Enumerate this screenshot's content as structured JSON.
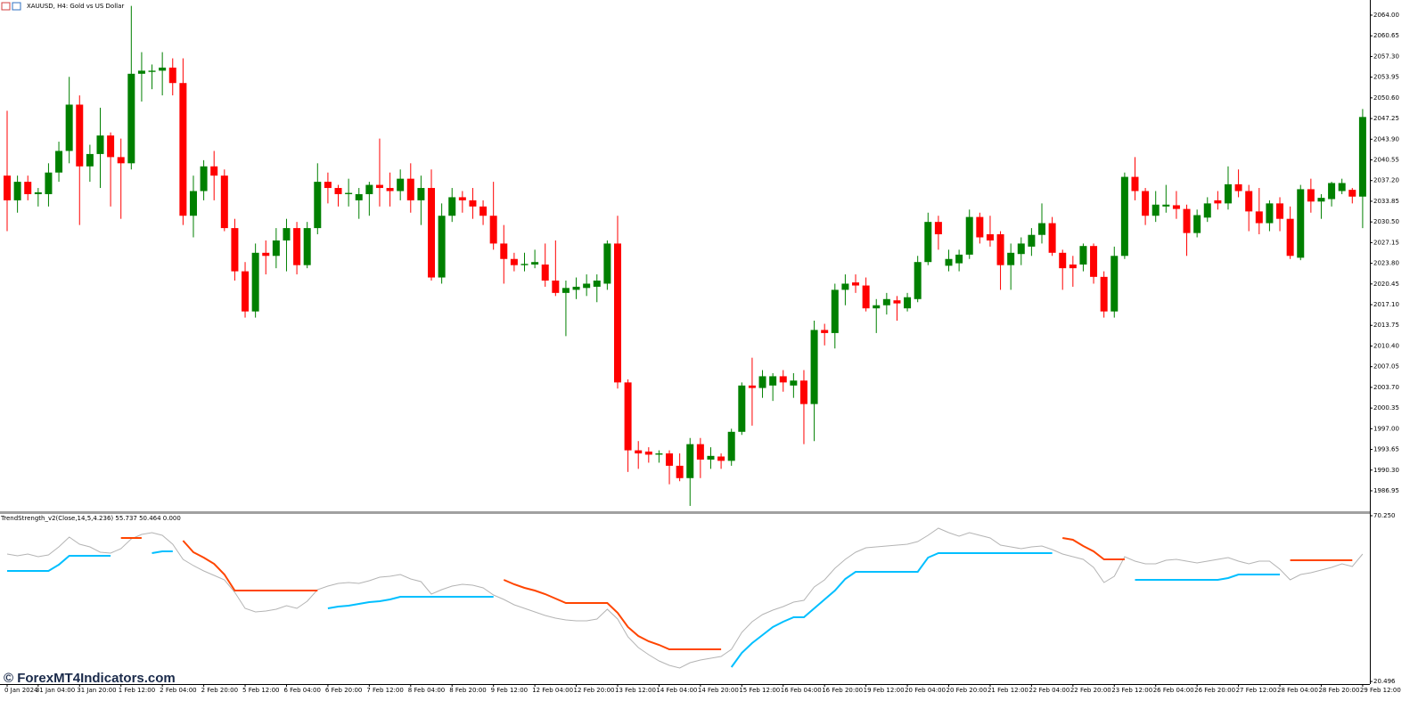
{
  "chart_data": [
    {
      "type": "candlestick",
      "title": "XAUUSD, H4:  Gold vs US Dollar",
      "categories": [
        "0 Jan 2024",
        null,
        null,
        "31 Jan 04:00",
        null,
        null,
        null,
        "31 Jan 20:00",
        null,
        null,
        null,
        "1 Feb 12:00",
        null,
        null,
        null,
        "2 Feb 04:00",
        null,
        null,
        null,
        "2 Feb 20:00",
        null,
        null,
        null,
        "5 Feb 12:00",
        null,
        null,
        null,
        "6 Feb 04:00",
        null,
        null,
        null,
        "6 Feb 20:00",
        null,
        null,
        null,
        "7 Feb 12:00",
        null,
        null,
        null,
        "8 Feb 04:00",
        null,
        null,
        null,
        "8 Feb 20:00",
        null,
        null,
        null,
        "9 Feb 12:00",
        null,
        null,
        null,
        "12 Feb 04:00",
        null,
        null,
        null,
        "12 Feb 20:00",
        null,
        null,
        null,
        "13 Feb 12:00",
        null,
        null,
        null,
        "14 Feb 04:00",
        null,
        null,
        null,
        "14 Feb 20:00",
        null,
        null,
        null,
        "15 Feb 12:00",
        null,
        null,
        null,
        "16 Feb 04:00",
        null,
        null,
        null,
        "16 Feb 20:00",
        null,
        null,
        null,
        "19 Feb 12:00",
        null,
        null,
        null,
        "20 Feb 04:00",
        null,
        null,
        null,
        "20 Feb 20:00",
        null,
        null,
        null,
        "21 Feb 12:00",
        null,
        null,
        null,
        "22 Feb 04:00",
        null,
        null,
        null,
        "22 Feb 20:00",
        null,
        null,
        null,
        "23 Feb 12:00",
        null,
        null,
        null,
        "26 Feb 04:00",
        null,
        null,
        null,
        "26 Feb 20:00",
        null,
        null,
        null,
        "27 Feb 12:00",
        null,
        null,
        null,
        "28 Feb 04:00",
        null,
        null,
        null,
        "28 Feb 20:00",
        null,
        null,
        null,
        "29 Feb 12:00"
      ],
      "open": [
        2038,
        2034,
        2037,
        2035,
        2035,
        2038.5,
        2042,
        2049.5,
        2039.5,
        2041.5,
        2044.5,
        2041,
        2040,
        2054.5,
        2054.8,
        2055,
        2055.5,
        2053,
        2031.5,
        2035.5,
        2039.5,
        2038,
        2029.5,
        2022.5,
        2016,
        2025.5,
        2025,
        2027.5,
        2029.5,
        2023.5,
        2029.5,
        2037,
        2036,
        2035,
        2034,
        2035,
        2036.5,
        2036,
        2035.5,
        2037.5,
        2034,
        2036,
        2021.5,
        2031.5,
        2034.5,
        2034,
        2033,
        2031.5,
        2027,
        2024.5,
        2023.5,
        2023.6,
        2023.6,
        2021,
        2019,
        2019.5,
        2019.8,
        2020,
        2020.5,
        2027,
        2004.5,
        1993.5,
        1993.3,
        1992.8,
        1993,
        1991,
        1989,
        1994.5,
        1992,
        1992.5,
        1991.8,
        1996.5,
        2004,
        2003.6,
        2004,
        2005.5,
        2004,
        2004.8,
        2001,
        2013,
        2012.5,
        2019.5,
        2020.7,
        2020.2,
        2016.5,
        2017,
        2017.8,
        2016.5,
        2018,
        2024,
        2030.5,
        2023.4,
        2023.8,
        2025.2,
        2031.3,
        2028.5,
        2028.5,
        2023.5,
        2025.3,
        2026.5,
        2028.4,
        2030.3,
        2025.5,
        2023.6,
        2023.6,
        2026.6,
        2021.6,
        2016,
        2025,
        2037.8,
        2035.5,
        2031.5,
        2033,
        2033.2,
        2032.6,
        2028.7,
        2031.2,
        2034,
        2033.5,
        2036.6,
        2035.5,
        2032.2,
        2030.3,
        2033.5,
        2031,
        2024.7,
        2035.8,
        2033.8,
        2034.2,
        2035.5,
        2035.7,
        2034.6
      ],
      "high": [
        2048.5,
        2038,
        2038,
        2036,
        2040,
        2043.5,
        2054,
        2051,
        2043,
        2049,
        2045,
        2044,
        2065.5,
        2058,
        2056,
        2058,
        2057,
        2057,
        2038,
        2040.5,
        2042,
        2039,
        2031,
        2024,
        2027,
        2027.5,
        2029.5,
        2031,
        2030.5,
        2030.5,
        2040,
        2038.5,
        2036.5,
        2037.5,
        2036,
        2037,
        2044,
        2038.5,
        2039,
        2040,
        2038,
        2039,
        2033.5,
        2036,
        2035.5,
        2036,
        2034,
        2037,
        2030,
        2025.5,
        2025.5,
        2026,
        2027,
        2027.5,
        2021,
        2021.5,
        2022,
        2022,
        2027.5,
        2031.5,
        2005,
        1995,
        1994,
        1993.5,
        1993.5,
        1993,
        1995.5,
        1995.5,
        1994,
        1993,
        1997,
        2004.5,
        2008.5,
        2006.5,
        2006,
        2006.5,
        2006,
        2006.5,
        2014.5,
        2014,
        2020.5,
        2022,
        2022,
        2021.5,
        2018,
        2019,
        2018.5,
        2019,
        2025,
        2032,
        2031.5,
        2026,
        2026,
        2032.5,
        2032,
        2031.5,
        2029,
        2027,
        2028,
        2029.5,
        2033.5,
        2031.3,
        2026,
        2025,
        2027,
        2027,
        2022.5,
        2026.5,
        2038.5,
        2041,
        2036,
        2035.5,
        2036.5,
        2035.5,
        2033.3,
        2032.5,
        2034.5,
        2035.5,
        2039.5,
        2039,
        2036.5,
        2036,
        2034,
        2034.5,
        2033,
        2036.5,
        2037.5,
        2035,
        2037,
        2037.5,
        2036,
        2048.8
      ],
      "low": [
        2029,
        2032,
        2034,
        2033,
        2033,
        2037,
        2040,
        2030,
        2037,
        2036,
        2033,
        2031,
        2039,
        2050,
        2052,
        2051,
        2051,
        2030,
        2028,
        2034,
        2034,
        2029,
        2021,
        2015,
        2015,
        2022,
        2023,
        2022.5,
        2022,
        2023,
        2028.5,
        2033.5,
        2033,
        2033,
        2031,
        2031.5,
        2033,
        2033,
        2034,
        2032,
        2030,
        2021,
        2020.5,
        2030.5,
        2032,
        2031,
        2030,
        2026,
        2020.5,
        2022.5,
        2022.5,
        2023,
        2020,
        2018.5,
        2012,
        2018,
        2018.5,
        2017.5,
        2019.5,
        2003.5,
        1990,
        1990.5,
        1991.5,
        1991.5,
        1988,
        1988.5,
        1984.5,
        1989,
        1990.5,
        1990.5,
        1991,
        1996,
        1997.5,
        2002,
        2001.5,
        2003,
        2002,
        1994.5,
        1995,
        2010.5,
        2010,
        2017,
        2019,
        2016,
        2012.5,
        2015.5,
        2014.5,
        2016,
        2017.5,
        2023.5,
        2026,
        2022.5,
        2022.5,
        2024.5,
        2027,
        2026.5,
        2019.5,
        2019.5,
        2023.5,
        2025,
        2027,
        2025,
        2019.5,
        2020,
        2022.5,
        2020.5,
        2015,
        2015,
        2024.5,
        2034,
        2030,
        2030.5,
        2032,
        2031,
        2025,
        2028,
        2030.5,
        2032.5,
        2032.5,
        2034.5,
        2029,
        2028.5,
        2029,
        2029,
        2024.5,
        2024.3,
        2032,
        2031,
        2033,
        2035,
        2033.5,
        2029.5
      ],
      "close": [
        2034,
        2037,
        2035,
        2035.3,
        2038.5,
        2042,
        2049.5,
        2039.5,
        2041.5,
        2044.5,
        2041,
        2040,
        2054.5,
        2055,
        2055,
        2055.5,
        2053,
        2031.5,
        2035.5,
        2039.5,
        2038,
        2029.5,
        2022.5,
        2016,
        2025.5,
        2025,
        2027.5,
        2029.5,
        2023.5,
        2029.5,
        2037,
        2036,
        2035,
        2035.2,
        2035,
        2036.5,
        2036,
        2035.5,
        2037.5,
        2034,
        2036,
        2021.5,
        2031.5,
        2034.5,
        2034,
        2033,
        2031.5,
        2027,
        2024.5,
        2023.5,
        2023.7,
        2024,
        2021,
        2019,
        2019.8,
        2020,
        2020.5,
        2021,
        2027,
        2004.5,
        1993.5,
        1993,
        1992.8,
        1993,
        1991,
        1989,
        1994.5,
        1992,
        1992.6,
        1991.8,
        1996.5,
        2004,
        2003.6,
        2005.5,
        2005.5,
        2004.5,
        2004.8,
        2001,
        2013,
        2012.5,
        2019.5,
        2020.5,
        2020.2,
        2016.5,
        2017,
        2018,
        2017.3,
        2018.3,
        2024,
        2030.5,
        2028.5,
        2024.5,
        2025.2,
        2031.3,
        2028,
        2027.5,
        2023.5,
        2025.5,
        2027,
        2028.4,
        2030.3,
        2025.5,
        2023,
        2023,
        2026.6,
        2021.6,
        2016,
        2025,
        2037.8,
        2035.5,
        2031.5,
        2033.3,
        2033.3,
        2032.6,
        2028.7,
        2031.6,
        2033.5,
        2033.5,
        2036.6,
        2035.5,
        2032.2,
        2030.3,
        2033.5,
        2031,
        2025,
        2035.8,
        2033.8,
        2034.4,
        2036.8,
        2036.8,
        2034.6,
        2047.5
      ],
      "up_color": "#008000",
      "down_color": "#ff0000",
      "ylim": [
        1983.63,
        2066.45
      ],
      "yticks": [
        {
          "value": 2064,
          "label": "2064.00"
        },
        2060.65,
        {
          "value": 2057.3,
          "label": "2057.30"
        },
        2053.95,
        {
          "value": 2050.6,
          "label": "2050.60"
        },
        2047.25,
        {
          "value": 2043.9,
          "label": "2043.90"
        },
        2040.55,
        {
          "value": 2037.2,
          "label": "2037.20"
        },
        2033.85,
        {
          "value": 2030.5,
          "label": "2030.50"
        },
        2027.15,
        {
          "value": 2023.8,
          "label": "2023.80"
        },
        2020.45,
        {
          "value": 2017.1,
          "label": "2017.10"
        },
        2013.75,
        {
          "value": 2010.4,
          "label": "2010.40"
        },
        2007.05,
        {
          "value": 2003.7,
          "label": "2003.70"
        },
        2000.35,
        {
          "value": 1997,
          "label": "1997.00"
        },
        1993.65,
        {
          "value": 1990.3,
          "label": "1990.30"
        },
        1986.95
      ]
    },
    {
      "type": "line",
      "title": "TrendStrength_v2(Close,14,5,4.236) 55.737 50.464 0.000",
      "series": [
        {
          "color": "#b4b4b4",
          "values": [
            58.75,
            58.22,
            58.75,
            57.95,
            58.48,
            60.89,
            63.83,
            61.69,
            60.89,
            59.29,
            59.02,
            60.36,
            63.3,
            64.63,
            65.17,
            64.37,
            61.69,
            57.15,
            55.28,
            53.67,
            52.33,
            51,
            47.25,
            42.44,
            41.37,
            41.64,
            42.17,
            43.24,
            42.44,
            44.58,
            48.06,
            49.12,
            49.93,
            50.19,
            49.93,
            50.73,
            51.8,
            52.07,
            52.6,
            51.26,
            50.46,
            46.72,
            48.06,
            49.12,
            49.66,
            49.39,
            48.59,
            46.45,
            45.11,
            43.51,
            42.44,
            41.37,
            40.3,
            39.5,
            38.96,
            38.7,
            38.7,
            39.23,
            42.17,
            39.23,
            33.88,
            30.67,
            28.54,
            26.66,
            25.33,
            24.52,
            26.13,
            26.93,
            27.47,
            28,
            30.14,
            35.22,
            38.43,
            40.57,
            41.91,
            42.97,
            44.31,
            44.85,
            48.86,
            51,
            54.47,
            57.15,
            59.29,
            60.62,
            60.89,
            61.16,
            61.43,
            61.69,
            62.5,
            64.37,
            66.51,
            65.17,
            64.1,
            65.17,
            64.37,
            63.56,
            61.43,
            60.89,
            60.36,
            60.89,
            61.16,
            60.09,
            58.75,
            57.95,
            57.15,
            54.74,
            50.19,
            52.07,
            57.95,
            56.61,
            55.81,
            55.81,
            56.88,
            57.15,
            56.61,
            56.08,
            56.61,
            57.15,
            57.68,
            56.61,
            55.81,
            56.61,
            56.61,
            54.21,
            51,
            52.6,
            53.14,
            53.94,
            54.74,
            55.81,
            55.01,
            58.75
          ]
        },
        {
          "color": "#00bfff",
          "values": [
            53.67,
            53.67,
            53.67,
            53.67,
            53.67,
            55.54,
            58.22,
            58.22,
            58.22,
            58.22,
            58.22,
            null,
            null,
            null,
            59.02,
            59.55,
            59.55,
            null,
            null,
            null,
            null,
            null,
            null,
            null,
            null,
            null,
            null,
            null,
            null,
            null,
            null,
            42.44,
            42.97,
            43.24,
            43.78,
            44.31,
            44.58,
            45.11,
            45.92,
            45.92,
            45.92,
            45.92,
            45.92,
            45.92,
            45.92,
            45.92,
            45.92,
            45.92,
            null,
            null,
            null,
            null,
            null,
            null,
            null,
            null,
            null,
            null,
            null,
            null,
            null,
            null,
            null,
            null,
            null,
            null,
            null,
            null,
            null,
            null,
            24.79,
            29.07,
            32.01,
            34.42,
            36.83,
            38.43,
            39.77,
            39.77,
            42.44,
            45.11,
            47.79,
            51.26,
            53.4,
            53.4,
            53.4,
            53.4,
            53.4,
            53.4,
            53.4,
            57.68,
            59.02,
            59.02,
            59.02,
            59.02,
            59.02,
            59.02,
            59.02,
            59.02,
            59.02,
            59.02,
            59.02,
            59.02,
            null,
            null,
            null,
            null,
            null,
            null,
            null,
            51,
            51,
            51,
            51,
            51,
            51,
            51,
            51,
            51,
            51.53,
            52.6,
            52.6,
            52.6,
            52.6,
            52.6,
            null,
            null,
            null,
            null,
            null,
            null,
            null,
            null
          ]
        },
        {
          "color": "#ff4500",
          "values": [
            null,
            null,
            null,
            null,
            null,
            null,
            null,
            null,
            null,
            null,
            null,
            63.56,
            63.56,
            63.56,
            null,
            null,
            null,
            62.76,
            59.29,
            57.68,
            55.81,
            52.6,
            47.79,
            47.79,
            47.79,
            47.79,
            47.79,
            47.79,
            47.79,
            47.79,
            47.79,
            null,
            null,
            null,
            null,
            null,
            null,
            null,
            null,
            null,
            null,
            null,
            null,
            null,
            null,
            null,
            null,
            null,
            51,
            49.66,
            48.59,
            47.79,
            46.72,
            45.38,
            44.04,
            44.04,
            44.04,
            44.04,
            44.04,
            41.1,
            36.83,
            34.15,
            32.55,
            31.48,
            30.14,
            30.14,
            30.14,
            30.14,
            30.14,
            30.14,
            null,
            null,
            null,
            null,
            null,
            null,
            null,
            null,
            null,
            null,
            null,
            null,
            null,
            null,
            null,
            null,
            null,
            null,
            null,
            null,
            null,
            null,
            null,
            null,
            null,
            null,
            null,
            null,
            null,
            null,
            null,
            null,
            63.56,
            63.03,
            61.16,
            59.55,
            57.15,
            57.15,
            57.15,
            null,
            null,
            null,
            null,
            null,
            null,
            null,
            null,
            null,
            null,
            null,
            null,
            null,
            null,
            null,
            56.88,
            56.88,
            56.88,
            56.88,
            56.88,
            56.88,
            56.88,
            null
          ]
        }
      ],
      "ylim": [
        19.72,
        70.78
      ],
      "yticks": [
        {
          "value": 70.25,
          "label": "70.250"
        },
        {
          "value": 20.496,
          "label": "20.496"
        }
      ]
    }
  ],
  "watermark": "© ForexMT4Indicators.com"
}
